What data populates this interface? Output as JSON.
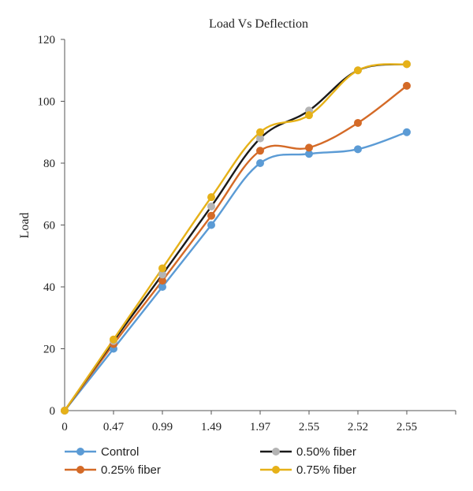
{
  "chart_data": {
    "type": "line",
    "title": "Load Vs Deflection",
    "xlabel": "",
    "ylabel": "Load",
    "categories": [
      "0",
      "0.47",
      "0.99",
      "1.49",
      "1.97",
      "2.55",
      "2.52",
      "2.55"
    ],
    "ylim": [
      0,
      120
    ],
    "yticks": [
      "0",
      "20",
      "40",
      "60",
      "80",
      "100",
      "120"
    ],
    "grid": false,
    "legend_position": "bottom",
    "series": [
      {
        "name": "Control",
        "color": "#5b9bd5",
        "marker_color": "#5b9bd5",
        "values": [
          0,
          20,
          40,
          60,
          80,
          83,
          84.5,
          90
        ]
      },
      {
        "name": "0.25% fiber",
        "color": "#d46a27",
        "marker_color": "#d46a27",
        "values": [
          0,
          21.5,
          42,
          63,
          84,
          85,
          93,
          105
        ]
      },
      {
        "name": "0.50% fiber",
        "color": "#1a1a1a",
        "marker_color": "#b4b4b4",
        "values": [
          0,
          22.5,
          44,
          66,
          88,
          97,
          110,
          112
        ]
      },
      {
        "name": "0.75% fiber",
        "color": "#e6b118",
        "marker_color": "#e6b118",
        "values": [
          0,
          23,
          46,
          69,
          90,
          95.5,
          110,
          112
        ]
      }
    ]
  }
}
